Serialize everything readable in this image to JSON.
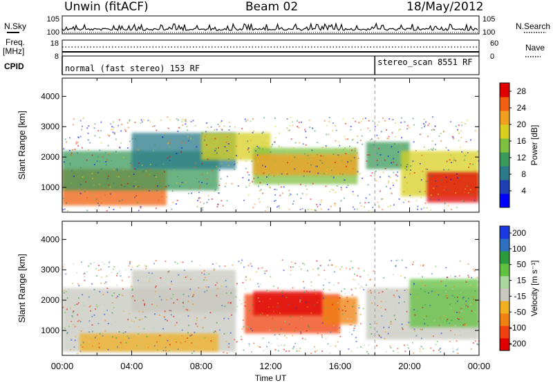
{
  "header": {
    "station": "Unwin (fitACF)",
    "beam": "Beam 02",
    "date": "18/May/2012"
  },
  "side_labels": {
    "nsky": "N.Sky",
    "nsearch": "N.Search",
    "freq": "Freq.",
    "freq_unit": "[MHz]",
    "nave": "Nave",
    "cpid": "CPID"
  },
  "colors": {
    "power_scale": [
      "#0000ff",
      "#1c3fb4",
      "#2b7a8a",
      "#3a9a5a",
      "#7fbf3f",
      "#d8d020",
      "#f0a020",
      "#f06010",
      "#e00000"
    ],
    "velocity_scale": [
      "#1a3ae0",
      "#3070c0",
      "#2a9a3a",
      "#60c040",
      "#a8d8a0",
      "#c8c8c0",
      "#f0b020",
      "#f08010",
      "#f04010",
      "#e00000"
    ]
  },
  "chart_data": [
    {
      "type": "line",
      "title": "",
      "panel": "noise",
      "series": [
        {
          "name": "N.Sky",
          "axis": "left",
          "tick_labels": [
            "10^5",
            "10^0"
          ]
        },
        {
          "name": "N.Search",
          "axis": "right",
          "tick_labels": [
            "10^5",
            "10^0"
          ]
        }
      ]
    },
    {
      "type": "line",
      "title": "",
      "panel": "frequency",
      "left_ticks": [
        "18",
        "8"
      ],
      "right_ticks": [
        "60",
        "0"
      ],
      "series": [
        {
          "name": "Freq.",
          "unit": "MHz",
          "axis": "left"
        },
        {
          "name": "Nave",
          "axis": "right"
        }
      ]
    },
    {
      "type": "table",
      "panel": "cpid",
      "segments": [
        {
          "label": "normal (fast stereo) 153 RF",
          "start_hour": 0,
          "end_hour": 18
        },
        {
          "label": "stereo_scan 8551 RF",
          "start_hour": 18,
          "end_hour": 24
        }
      ]
    },
    {
      "type": "heatmap",
      "panel": "power",
      "ylabel": "Slant Range [km]",
      "yticks": [
        1000,
        2000,
        3000,
        4000
      ],
      "ylim": [
        180,
        4600
      ],
      "xlim": [
        0,
        24
      ],
      "colorbar_label": "Power [dB]",
      "colorbar_ticks": [
        4,
        8,
        12,
        16,
        20,
        24,
        28
      ],
      "colorbar_range": [
        0,
        30
      ]
    },
    {
      "type": "heatmap",
      "panel": "velocity",
      "ylabel": "Slant Range [km]",
      "yticks": [
        1000,
        2000,
        3000,
        4000
      ],
      "ylim": [
        180,
        4600
      ],
      "xlim": [
        0,
        24
      ],
      "xticks": [
        "00:00",
        "04:00",
        "08:00",
        "12:00",
        "16:00",
        "20:00",
        "00:00"
      ],
      "xlabel": "Time UT",
      "colorbar_label": "Velocity [m s⁻¹]",
      "colorbar_ticks": [
        "200",
        "100",
        "50",
        "15",
        "-15",
        "-50",
        "-100",
        "-200"
      ]
    }
  ]
}
